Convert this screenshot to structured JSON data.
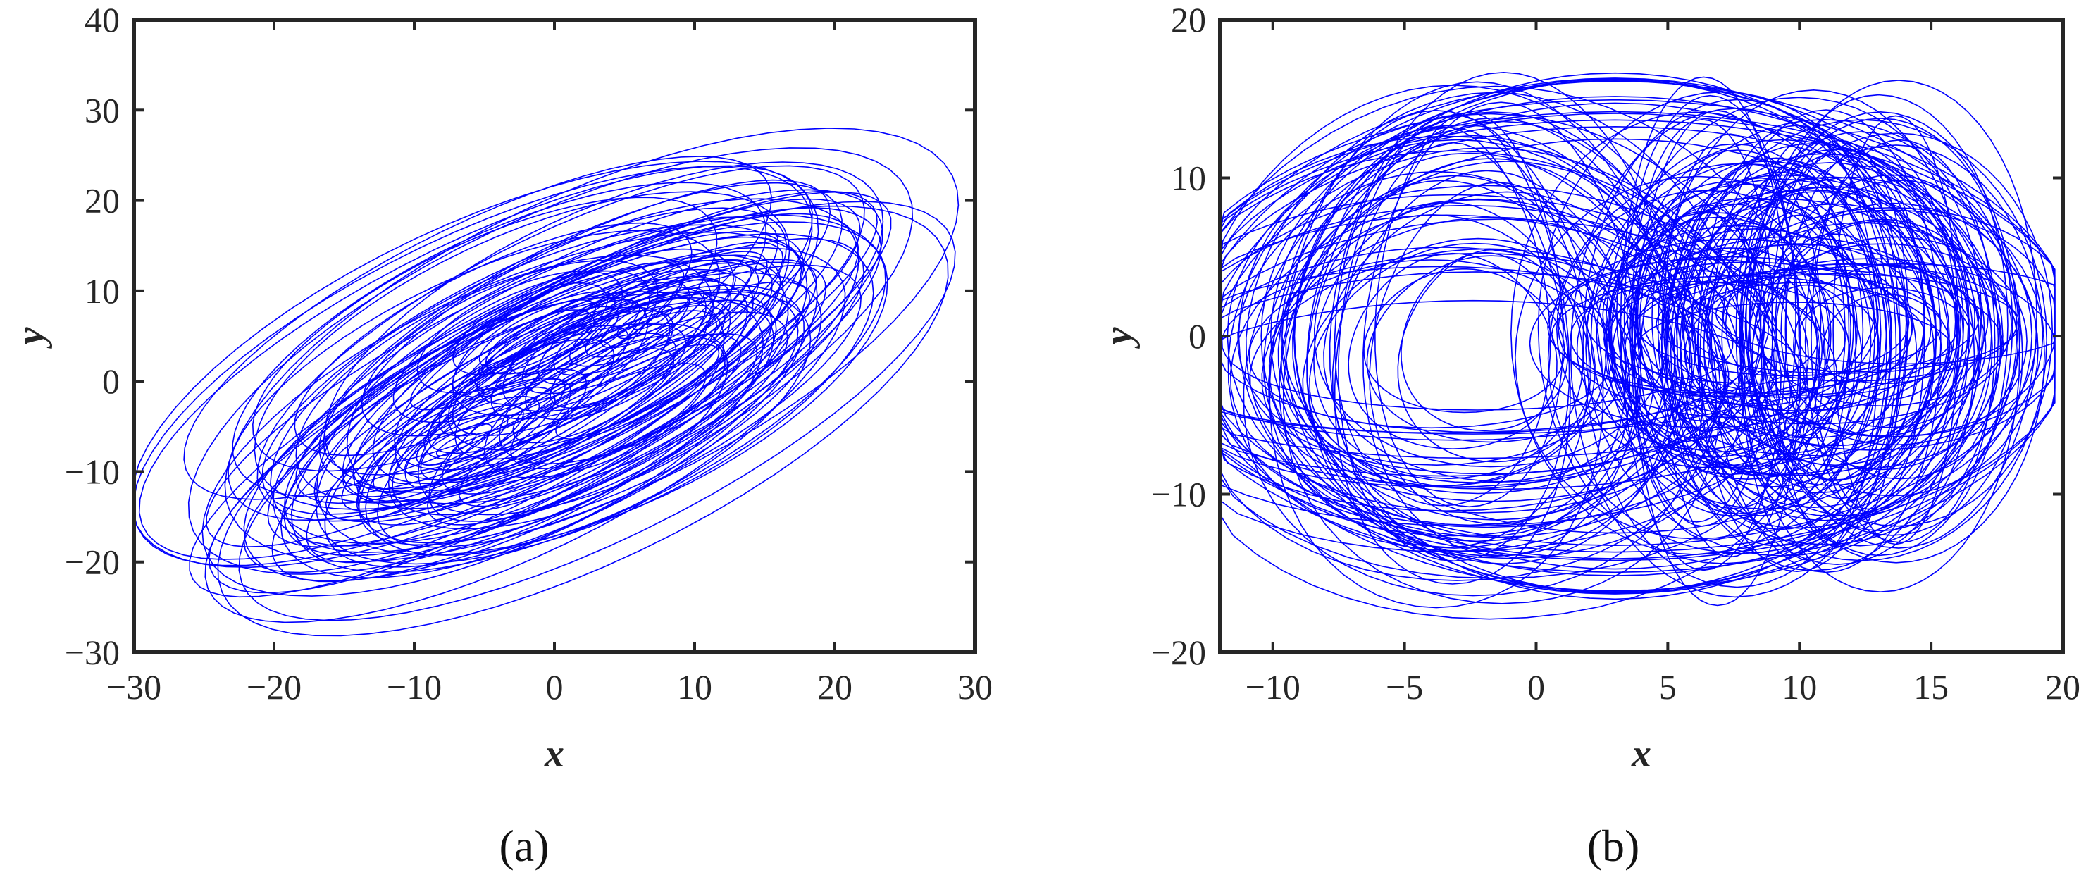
{
  "chart_data": [
    {
      "type": "line",
      "panel_label": "(a)",
      "xlabel": "x",
      "ylabel": "y",
      "xlim": [
        -30,
        30
      ],
      "ylim": [
        -30,
        40
      ],
      "xticks": [
        -30,
        -20,
        -10,
        0,
        10,
        20,
        30
      ],
      "yticks": [
        -30,
        -20,
        -10,
        0,
        10,
        20,
        30,
        40
      ],
      "xtick_labels": [
        "−30",
        "−20",
        "−10",
        "0",
        "10",
        "20",
        "30"
      ],
      "ytick_labels": [
        "−30",
        "−20",
        "−10",
        "0",
        "10",
        "20",
        "30",
        "40"
      ],
      "grid": false,
      "series_color": "#0000ff",
      "description_points": {
        "x": [
          -25,
          -20,
          -15,
          -10,
          -5,
          0,
          5,
          10,
          15,
          20,
          25,
          20,
          10,
          0,
          -10,
          -20,
          -25
        ],
        "y": [
          -27,
          -22,
          -15,
          -8,
          -3,
          2,
          6,
          12,
          18,
          24,
          29,
          27,
          18,
          8,
          -3,
          -18,
          -27
        ]
      }
    },
    {
      "type": "line",
      "panel_label": "(b)",
      "xlabel": "x",
      "ylabel": "y",
      "xlim": [
        -12,
        20
      ],
      "ylim": [
        -20,
        20
      ],
      "xticks": [
        -10,
        -5,
        0,
        5,
        10,
        15,
        20
      ],
      "yticks": [
        -20,
        -10,
        0,
        10,
        20
      ],
      "xtick_labels": [
        "−10",
        "−5",
        "0",
        "5",
        "10",
        "15",
        "20"
      ],
      "ytick_labels": [
        "−20",
        "−10",
        "0",
        "10",
        "20"
      ],
      "grid": false,
      "series_color": "#0000ff",
      "description_points": {
        "x": [
          -12,
          -8,
          -4,
          0,
          4,
          8,
          12,
          16,
          19.5,
          16,
          12,
          8,
          4,
          0,
          -4,
          -8,
          -12
        ],
        "y": [
          0,
          10,
          15,
          16,
          17,
          15,
          14,
          16,
          0,
          -14,
          -17,
          -16,
          -14,
          -13,
          -12,
          -8,
          0
        ]
      }
    }
  ]
}
